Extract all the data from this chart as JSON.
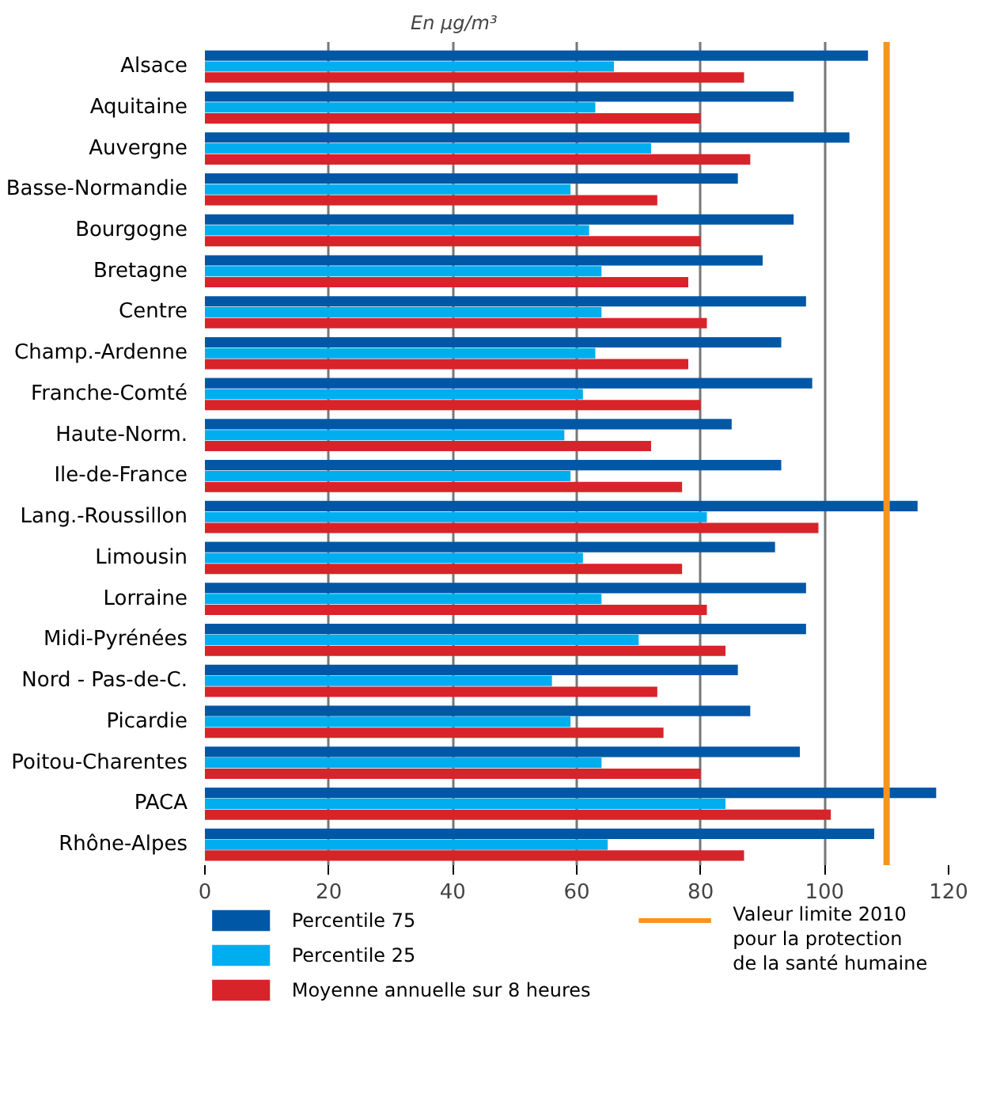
{
  "chart_data": {
    "type": "bar",
    "orientation": "horizontal",
    "title": "En µg/m³",
    "categories": [
      "Alsace",
      "Aquitaine",
      "Auvergne",
      "Basse-Normandie",
      "Bourgogne",
      "Bretagne",
      "Centre",
      "Champ.-Ardenne",
      "Franche-Comté",
      "Haute-Norm.",
      "Ile-de-France",
      "Lang.-Roussillon",
      "Limousin",
      "Lorraine",
      "Midi-Pyrénées",
      "Nord - Pas-de-C.",
      "Picardie",
      "Poitou-Charentes",
      "PACA",
      "Rhône-Alpes"
    ],
    "series": [
      {
        "name": "Percentile 75",
        "color": "#0057a6",
        "values": [
          107,
          95,
          104,
          86,
          95,
          90,
          97,
          93,
          98,
          85,
          93,
          115,
          92,
          97,
          97,
          86,
          88,
          96,
          118,
          108
        ]
      },
      {
        "name": "Percentile 25",
        "color": "#00aeef",
        "values": [
          66,
          63,
          72,
          59,
          62,
          64,
          64,
          63,
          61,
          58,
          59,
          81,
          61,
          64,
          70,
          56,
          59,
          64,
          84,
          65
        ]
      },
      {
        "name": "Moyenne annuelle sur 8 heures",
        "color": "#d9232a",
        "values": [
          87,
          80,
          88,
          73,
          80,
          78,
          81,
          78,
          80,
          72,
          77,
          99,
          77,
          81,
          84,
          73,
          74,
          80,
          101,
          87
        ]
      }
    ],
    "xlim": [
      0,
      120
    ],
    "xticks": [
      0,
      20,
      40,
      60,
      80,
      100,
      120
    ],
    "ref_lines": [
      {
        "axis": "x",
        "value": 110,
        "label": "Valeur limite 2010\npour la protection\nde la santé humaine",
        "color": "#f7941d"
      }
    ],
    "grid": "x",
    "legend": "bottom"
  }
}
